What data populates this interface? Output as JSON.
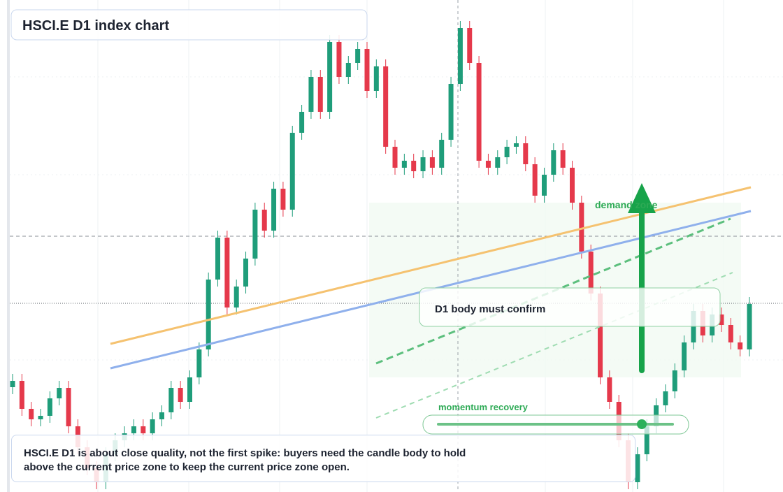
{
  "chart_data": {
    "type": "candlestick",
    "title": "HSCI.E D1 index chart",
    "up_color": "#1f9d7a",
    "down_color": "#e5394b",
    "ylim": [
      0,
      704
    ],
    "open": [
      150,
      159,
      119,
      104,
      109,
      134,
      149,
      94,
      64,
      34,
      14,
      54,
      74,
      84,
      94,
      84,
      104,
      114,
      149,
      129,
      164,
      204,
      304,
      364,
      264,
      294,
      334,
      404,
      374,
      434,
      404,
      514,
      544,
      594,
      544,
      644,
      594,
      614,
      634,
      574,
      609,
      494,
      464,
      474,
      459,
      479,
      464,
      504,
      584,
      664,
      614,
      474,
      464,
      479,
      494,
      499,
      469,
      424,
      454,
      489,
      464,
      414,
      344,
      284,
      164,
      129,
      74,
      14,
      54,
      94,
      124,
      144,
      174,
      214,
      259,
      224,
      254,
      239,
      214,
      204
    ],
    "high": [
      169,
      169,
      129,
      119,
      144,
      159,
      159,
      104,
      74,
      44,
      64,
      84,
      94,
      104,
      104,
      114,
      124,
      159,
      159,
      174,
      214,
      314,
      374,
      374,
      304,
      344,
      414,
      414,
      444,
      444,
      524,
      554,
      604,
      604,
      654,
      654,
      624,
      644,
      644,
      619,
      619,
      504,
      484,
      484,
      489,
      489,
      514,
      594,
      674,
      674,
      624,
      484,
      489,
      504,
      509,
      509,
      479,
      464,
      499,
      499,
      474,
      424,
      354,
      294,
      174,
      139,
      84,
      64,
      104,
      134,
      154,
      184,
      224,
      269,
      269,
      264,
      264,
      249,
      224,
      279
    ],
    "low": [
      140,
      109,
      94,
      94,
      99,
      124,
      84,
      54,
      24,
      4,
      4,
      44,
      64,
      74,
      74,
      74,
      94,
      104,
      119,
      119,
      154,
      194,
      294,
      254,
      254,
      284,
      324,
      364,
      364,
      394,
      394,
      504,
      534,
      534,
      534,
      584,
      584,
      604,
      564,
      564,
      484,
      454,
      454,
      449,
      449,
      454,
      454,
      494,
      574,
      604,
      464,
      454,
      454,
      469,
      484,
      459,
      414,
      414,
      444,
      454,
      404,
      334,
      274,
      154,
      119,
      64,
      4,
      4,
      44,
      84,
      114,
      134,
      164,
      204,
      214,
      214,
      229,
      204,
      194,
      194
    ],
    "close": [
      159,
      119,
      104,
      109,
      134,
      149,
      94,
      64,
      34,
      14,
      54,
      74,
      84,
      94,
      84,
      104,
      114,
      149,
      129,
      164,
      204,
      304,
      364,
      264,
      294,
      334,
      404,
      374,
      434,
      404,
      514,
      544,
      594,
      544,
      644,
      594,
      614,
      634,
      574,
      609,
      494,
      464,
      474,
      459,
      479,
      464,
      504,
      584,
      664,
      614,
      474,
      464,
      479,
      494,
      499,
      469,
      424,
      454,
      489,
      464,
      414,
      344,
      284,
      164,
      129,
      74,
      14,
      54,
      94,
      124,
      144,
      174,
      214,
      259,
      224,
      254,
      239,
      214,
      204,
      269
    ],
    "annotations": {
      "zone": "demand zone",
      "confirm": "D1 body must confirm",
      "momentum": "momentum recovery",
      "note": "HSCI.E D1 is about close quality, not the first spike: buyers need the candle body to hold above the current price zone to keep the current price zone open."
    }
  }
}
